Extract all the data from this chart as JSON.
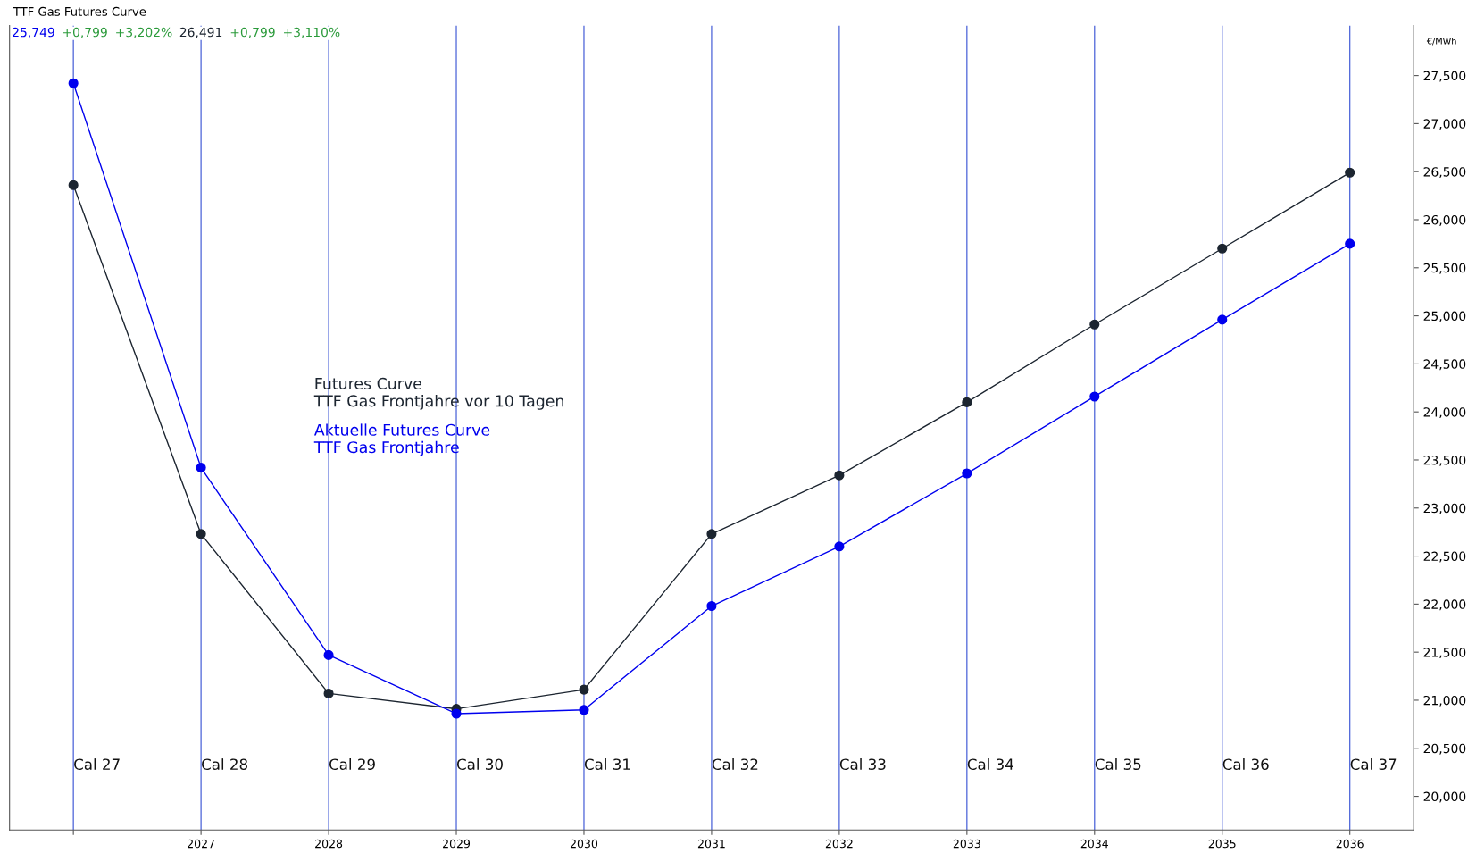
{
  "chart_data": {
    "type": "line",
    "title": "TTF Gas Futures Curve",
    "ylabel": "€/MWh",
    "x": [
      2026,
      2027,
      2028,
      2029,
      2030,
      2031,
      2032,
      2033,
      2034,
      2035,
      2036
    ],
    "series": [
      {
        "name": "Futures Curve\nTTF Gas Frontjahre vor 10 Tagen",
        "color": "#1c2530",
        "values": [
          26.36,
          22.73,
          21.07,
          20.91,
          21.11,
          22.73,
          23.34,
          24.1,
          24.91,
          25.7,
          26.49
        ]
      },
      {
        "name": "Aktuelle Futures Curve\nTTF Gas Frontjahre",
        "color": "#0000ee",
        "values": [
          27.42,
          23.42,
          21.47,
          20.86,
          20.9,
          21.98,
          22.6,
          23.36,
          24.16,
          24.96,
          25.75
        ]
      }
    ],
    "annotations": [
      "25,749",
      "+0,799",
      "+3,202%",
      "26,491",
      "+0,799",
      "+3,110%",
      "Cal 27",
      "Cal 28",
      "Cal 29",
      "Cal 30",
      "Cal 31",
      "Cal 32",
      "Cal 33",
      "Cal 34",
      "Cal 35",
      "Cal 36",
      "Cal 37"
    ],
    "xlim": [
      2025.5,
      2036.5
    ],
    "xticks": [
      {
        "value": 2026,
        "label": null
      },
      2027,
      2028,
      2029,
      2030,
      2031,
      2032,
      2033,
      2034,
      2035,
      2036
    ],
    "ylim": [
      19.65,
      28.02
    ],
    "yticks": [
      {
        "value": 20,
        "label": "20,000"
      },
      {
        "value": 20.5,
        "label": "20,500"
      },
      {
        "value": 21,
        "label": "21,000"
      },
      {
        "value": 21.5,
        "label": "21,500"
      },
      {
        "value": 22,
        "label": "22,000"
      },
      {
        "value": 22.5,
        "label": "22,500"
      },
      {
        "value": 23,
        "label": "23,000"
      },
      {
        "value": 23.5,
        "label": "23,500"
      },
      {
        "value": 24,
        "label": "24,000"
      },
      {
        "value": 24.5,
        "label": "24,500"
      },
      {
        "value": 25,
        "label": "25,000"
      },
      {
        "value": 25.5,
        "label": "25,500"
      },
      {
        "value": 26,
        "label": "26,000"
      },
      {
        "value": 26.5,
        "label": "26,500"
      },
      {
        "value": 27,
        "label": "27,000"
      },
      {
        "value": 27.5,
        "label": "27,500"
      }
    ],
    "grid": "x",
    "legend": "center left",
    "marker": "circle",
    "line_style": "solid"
  }
}
